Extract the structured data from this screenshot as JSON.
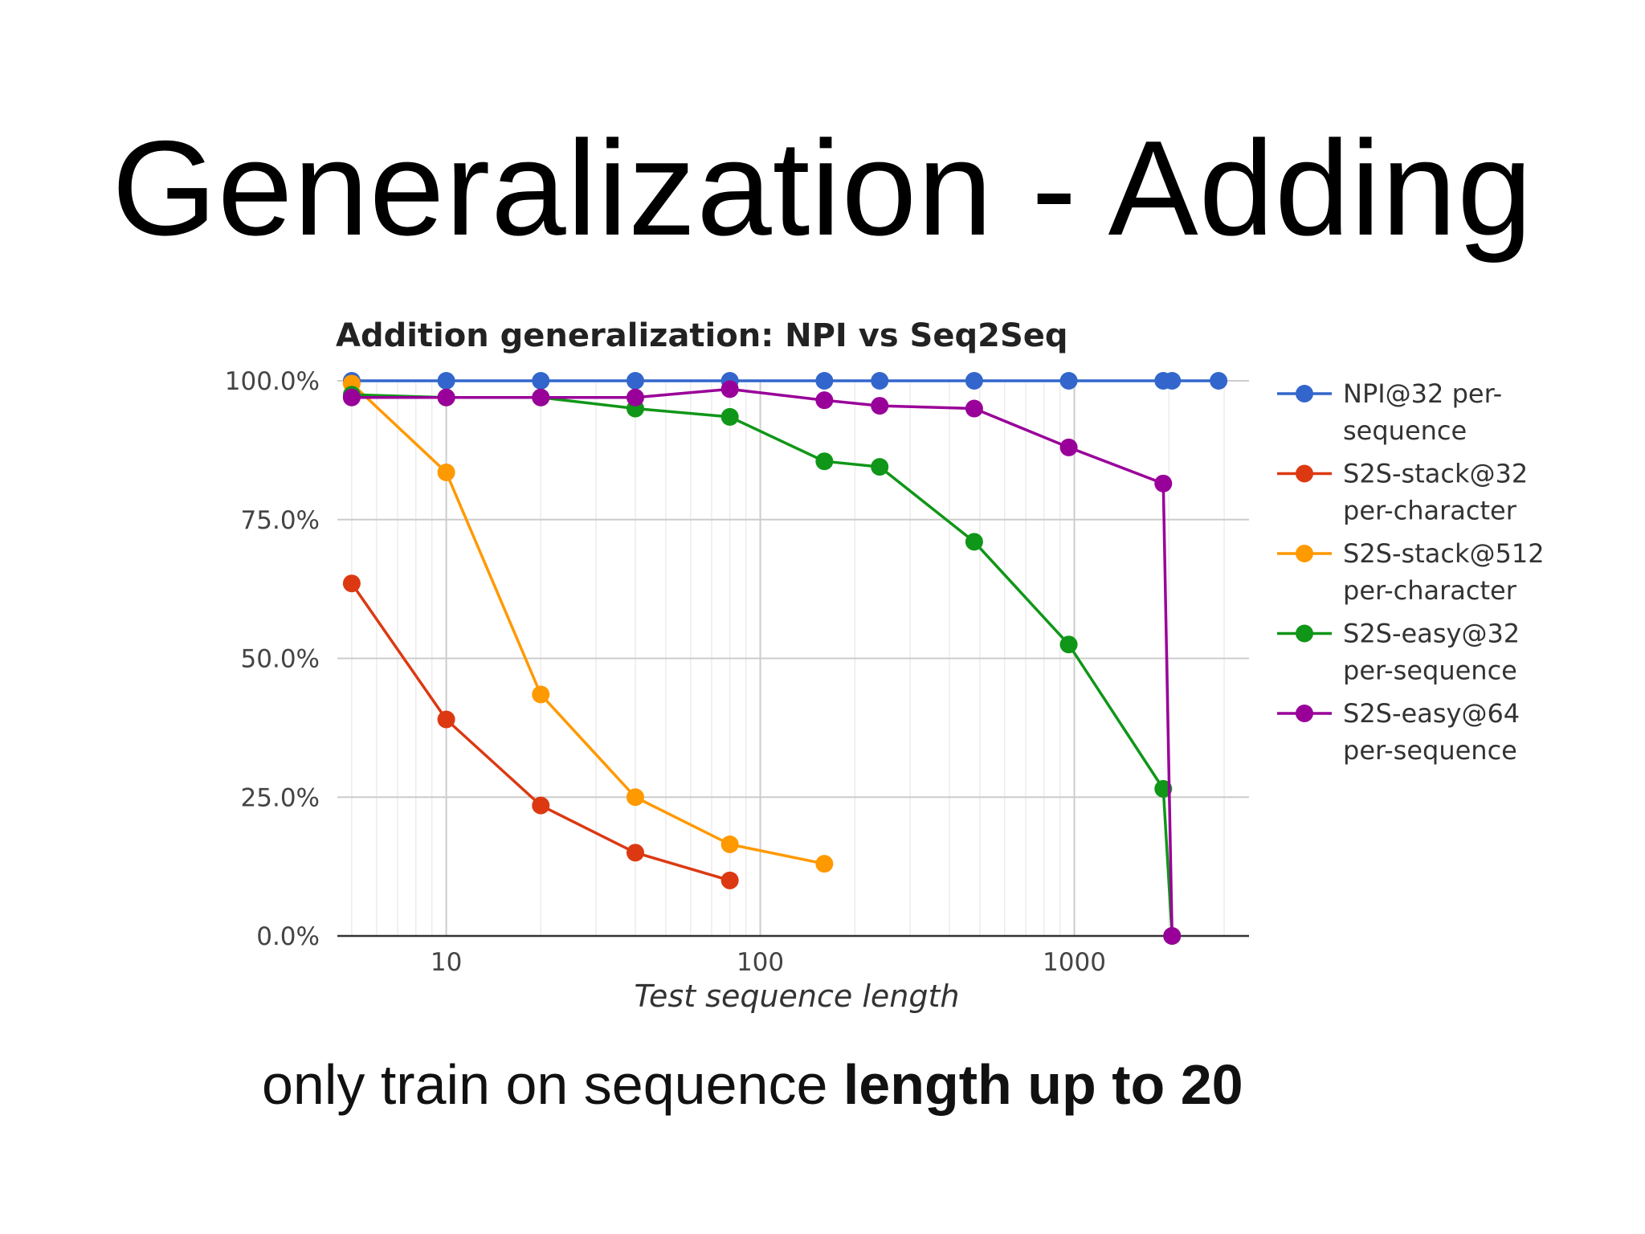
{
  "slide": {
    "title": "Generalization - Adding",
    "caption_normal": "only train on sequence ",
    "caption_bold": "length up to 20"
  },
  "chart_data": {
    "type": "line",
    "title": "Addition generalization: NPI vs Seq2Seq",
    "xlabel": "Test sequence length",
    "ylabel": "",
    "x_scale": "log",
    "xlim": [
      4.5,
      3600
    ],
    "ylim": [
      0,
      100
    ],
    "x_ticks": [
      10,
      100,
      1000
    ],
    "x_tick_labels": [
      "10",
      "100",
      "1000"
    ],
    "y_ticks": [
      0,
      25,
      50,
      75,
      100
    ],
    "y_tick_labels": [
      "0.0%",
      "25.0%",
      "50.0%",
      "75.0%",
      "100.0%"
    ],
    "grid": true,
    "legend_position": "right",
    "series": [
      {
        "name": "NPI@32 per-sequence",
        "legend_lines": [
          "NPI@32 per-",
          "sequence"
        ],
        "color": "#3366cc",
        "points": [
          [
            5,
            100
          ],
          [
            10,
            100
          ],
          [
            20,
            100
          ],
          [
            40,
            100
          ],
          [
            80,
            100
          ],
          [
            160,
            100
          ],
          [
            240,
            100
          ],
          [
            480,
            100
          ],
          [
            960,
            100
          ],
          [
            1920,
            100
          ],
          [
            2048,
            100
          ],
          [
            2880,
            100
          ]
        ]
      },
      {
        "name": "S2S-stack@32 per-character",
        "legend_lines": [
          "S2S-stack@32",
          "per-character"
        ],
        "color": "#dc3912",
        "points": [
          [
            5,
            63.5
          ],
          [
            10,
            39
          ],
          [
            20,
            23.5
          ],
          [
            40,
            15
          ],
          [
            80,
            10
          ]
        ]
      },
      {
        "name": "S2S-stack@512 per-character",
        "legend_lines": [
          "S2S-stack@512",
          "per-character"
        ],
        "color": "#ff9900",
        "points": [
          [
            5,
            99.5
          ],
          [
            10,
            83.5
          ],
          [
            20,
            43.5
          ],
          [
            40,
            25
          ],
          [
            80,
            16.5
          ],
          [
            160,
            13
          ]
        ]
      },
      {
        "name": "S2S-easy@32 per-sequence",
        "legend_lines": [
          "S2S-easy@32",
          "per-sequence"
        ],
        "color": "#109618",
        "points": [
          [
            5,
            97.5
          ],
          [
            10,
            97
          ],
          [
            20,
            97
          ],
          [
            40,
            95
          ],
          [
            80,
            93.5
          ],
          [
            160,
            85.5
          ],
          [
            240,
            84.5
          ],
          [
            480,
            71
          ],
          [
            960,
            52.5
          ],
          [
            1920,
            26.5
          ],
          [
            2048,
            0
          ]
        ]
      },
      {
        "name": "S2S-easy@64 per-sequence",
        "legend_lines": [
          "S2S-easy@64",
          "per-sequence"
        ],
        "color": "#990099",
        "points": [
          [
            5,
            97
          ],
          [
            10,
            97
          ],
          [
            20,
            97
          ],
          [
            40,
            97
          ],
          [
            80,
            98.5
          ],
          [
            160,
            96.5
          ],
          [
            240,
            95.5
          ],
          [
            480,
            95
          ],
          [
            960,
            88
          ],
          [
            1920,
            81.5
          ],
          [
            2048,
            0
          ]
        ]
      }
    ]
  }
}
